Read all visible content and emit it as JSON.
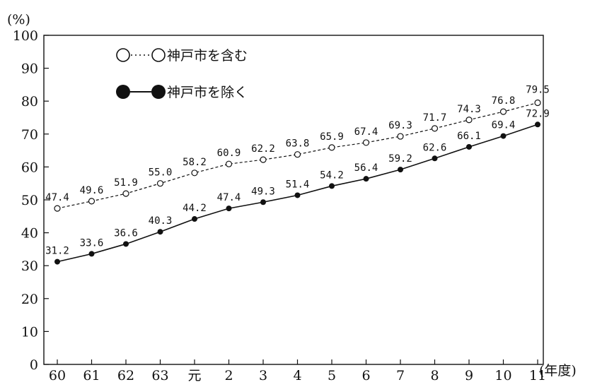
{
  "chart_data": {
    "type": "line",
    "ylabel": "(%)",
    "xlabel": "(年度)",
    "ylim": [
      0,
      100
    ],
    "yticks": [
      0,
      10,
      20,
      30,
      40,
      50,
      60,
      70,
      80,
      90,
      100
    ],
    "categories": [
      "60",
      "61",
      "62",
      "63",
      "元",
      "2",
      "3",
      "4",
      "5",
      "6",
      "7",
      "8",
      "9",
      "10",
      "11"
    ],
    "grid": false,
    "legend_position": "top-left",
    "series": [
      {
        "name": "神戸市を含む",
        "style": "dashed",
        "marker": "open-circle",
        "values": [
          47.4,
          49.6,
          51.9,
          55.0,
          58.2,
          60.9,
          62.2,
          63.8,
          65.9,
          67.4,
          69.3,
          71.7,
          74.3,
          76.8,
          79.5
        ],
        "labels": [
          "47.4",
          "49.6",
          "51.9",
          "55.0",
          "58.2",
          "60.9",
          "62.2",
          "63.8",
          "65.9",
          "67.4",
          "69.3",
          "71.7",
          "74.3",
          "76.8",
          "79.5"
        ]
      },
      {
        "name": "神戸市を除く",
        "style": "solid",
        "marker": "filled-circle",
        "values": [
          31.2,
          33.6,
          36.6,
          40.3,
          44.2,
          47.4,
          49.3,
          51.4,
          54.2,
          56.4,
          59.2,
          62.6,
          66.1,
          69.4,
          72.9
        ],
        "labels": [
          "31.2",
          "33.6",
          "36.6",
          "40.3",
          "44.2",
          "47.4",
          "49.3",
          "51.4",
          "54.2",
          "56.4",
          "59.2",
          "62.6",
          "66.1",
          "69.4",
          "72.9"
        ]
      }
    ],
    "line_color": "#111111"
  }
}
